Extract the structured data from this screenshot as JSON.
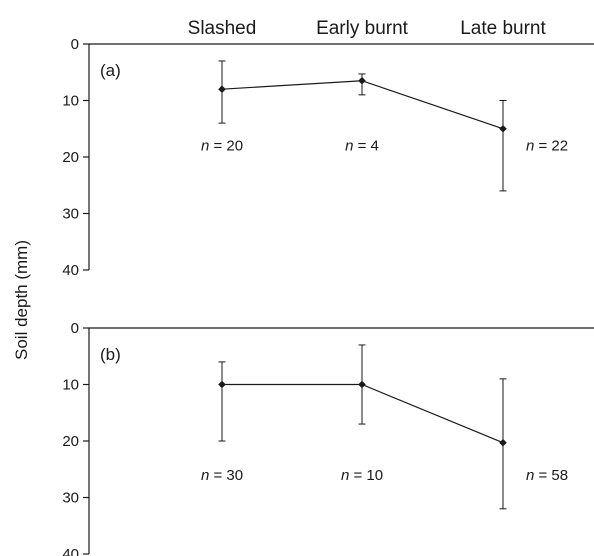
{
  "chart_data": {
    "type": "line",
    "ylabel": "Soil depth (mm)",
    "categories": [
      "Slashed",
      "Early burnt",
      "Late burnt"
    ],
    "y_axis": {
      "inverted": true,
      "ylim": [
        0,
        40
      ],
      "ticks": [
        0,
        10,
        20,
        30,
        40
      ]
    },
    "grid": false,
    "panels": [
      {
        "label": "(a)",
        "values": [
          8,
          6.5,
          15
        ],
        "error_low": [
          14,
          9,
          26
        ],
        "error_high": [
          3,
          5.3,
          10
        ],
        "n_labels": [
          "n = 20",
          "n = 4",
          "n = 22"
        ],
        "n_label_depth": [
          18,
          18,
          18
        ]
      },
      {
        "label": "(b)",
        "values": [
          10,
          10,
          20.3
        ],
        "error_low": [
          20,
          17,
          32
        ],
        "error_high": [
          6,
          3,
          9
        ],
        "n_labels": [
          "n = 30",
          "n = 10",
          "n = 58"
        ],
        "n_label_depth": [
          26,
          26,
          26
        ]
      }
    ]
  }
}
